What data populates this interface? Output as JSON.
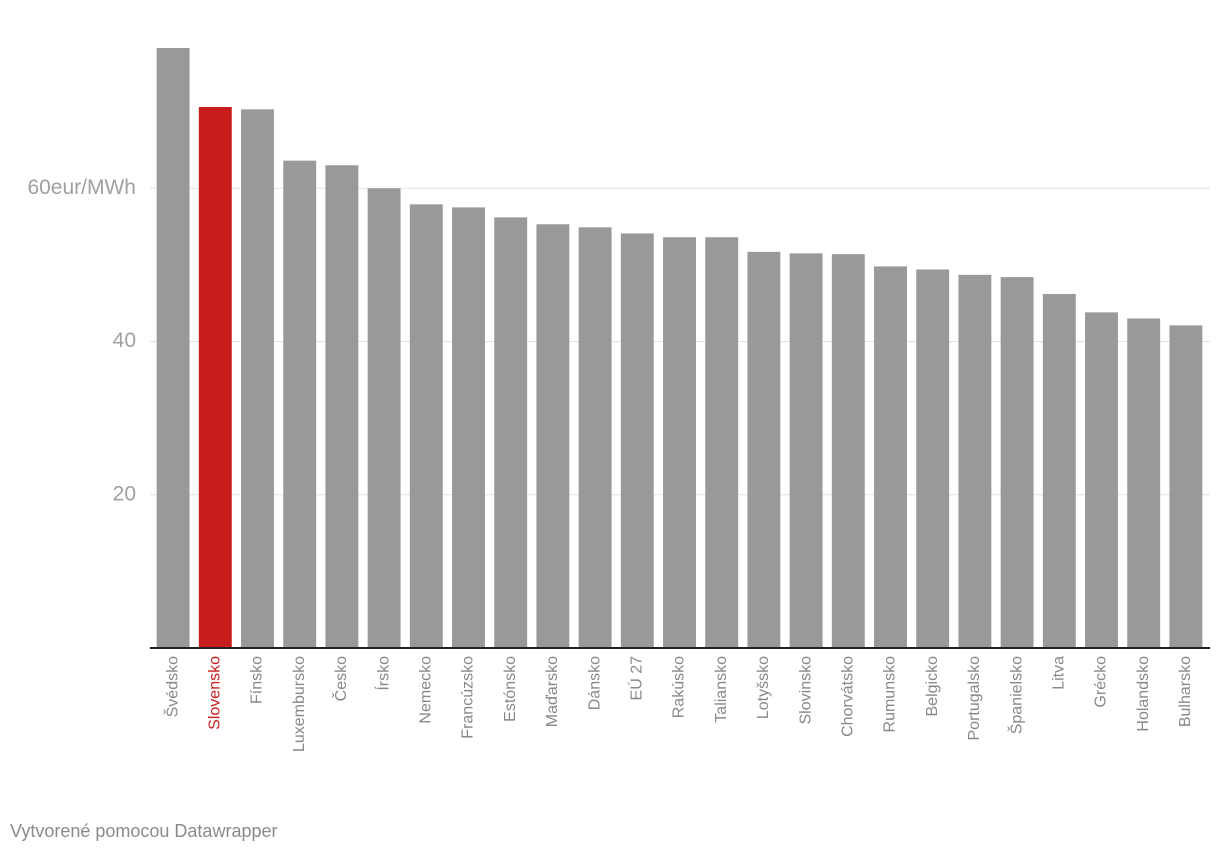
{
  "chart_data": {
    "type": "bar",
    "categories": [
      "Švédsko",
      "Slovensko",
      "Fínsko",
      "Luxembursko",
      "Česko",
      "Írsko",
      "Nemecko",
      "Francúzsko",
      "Estónsko",
      "Maďarsko",
      "Dánsko",
      "EÚ 27",
      "Rakúsko",
      "Taliansko",
      "Lotyšsko",
      "Slovinsko",
      "Chorvátsko",
      "Rumunsko",
      "Belgicko",
      "Portugalsko",
      "Španielsko",
      "Litva",
      "Grécko",
      "Holandsko",
      "Bulharsko"
    ],
    "values": [
      78.3,
      70.6,
      70.3,
      63.6,
      63.0,
      60.0,
      57.9,
      57.5,
      56.2,
      55.3,
      54.9,
      54.1,
      53.6,
      53.6,
      51.7,
      51.5,
      51.4,
      49.8,
      49.4,
      48.7,
      48.4,
      46.2,
      43.8,
      43.0,
      42.1
    ],
    "colors": [
      "#999999",
      "#c71e1d",
      "#999999",
      "#999999",
      "#999999",
      "#999999",
      "#999999",
      "#999999",
      "#999999",
      "#999999",
      "#999999",
      "#999999",
      "#999999",
      "#999999",
      "#999999",
      "#999999",
      "#999999",
      "#999999",
      "#999999",
      "#999999",
      "#999999",
      "#999999",
      "#999999",
      "#999999",
      "#999999"
    ],
    "ylim": [
      0,
      78.3
    ],
    "yticks": [
      20,
      40,
      {
        "value": 60,
        "label": "60eur/MWh"
      }
    ],
    "grid": true,
    "credit": "Vytvorené pomocou Datawrapper"
  }
}
